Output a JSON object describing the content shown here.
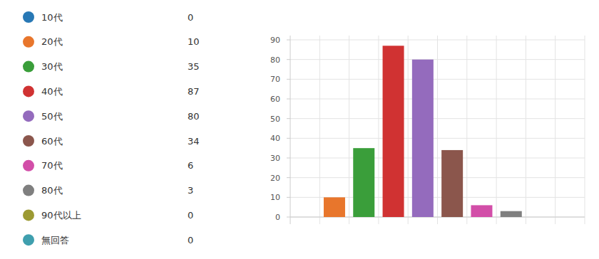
{
  "chart_data": {
    "type": "bar",
    "categories": [
      "10代",
      "20代",
      "30代",
      "40代",
      "50代",
      "60代",
      "70代",
      "80代",
      "90代以上",
      "無回答"
    ],
    "values": [
      0,
      10,
      35,
      87,
      80,
      34,
      6,
      3,
      0,
      0
    ],
    "colors": [
      "#2878b5",
      "#e8762c",
      "#3a9e3a",
      "#d03232",
      "#946bbd",
      "#8b564c",
      "#d24ea8",
      "#7f7f7f",
      "#9c9a33",
      "#3f9fae"
    ],
    "ylim": [
      0,
      90
    ],
    "yticks": [
      0,
      10,
      20,
      30,
      40,
      50,
      60,
      70,
      80,
      90
    ],
    "grid": true,
    "legend": "left",
    "tick_labels": "y"
  }
}
